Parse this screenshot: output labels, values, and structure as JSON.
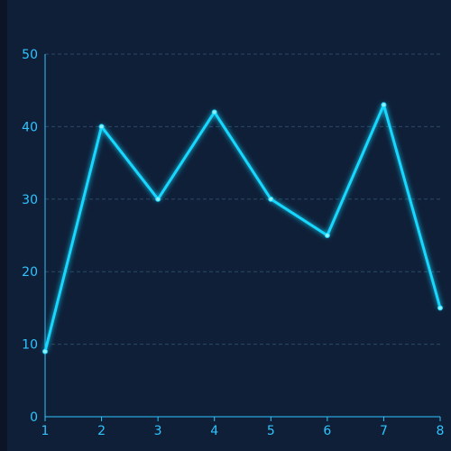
{
  "colors": {
    "background": "#0f1f38",
    "line": "#19d8ff",
    "axis": "#2fc4ff",
    "grid": "#2a4a66"
  },
  "chart_data": {
    "type": "line",
    "title": "",
    "xlabel": "",
    "ylabel": "",
    "x": [
      1,
      2,
      3,
      4,
      5,
      6,
      7,
      8
    ],
    "series": [
      {
        "values": [
          9,
          40,
          30,
          42,
          30,
          25,
          43,
          15
        ]
      }
    ],
    "xticks": [
      "1",
      "2",
      "3",
      "4",
      "5",
      "6",
      "7",
      "8"
    ],
    "yticks": [
      "0",
      "10",
      "20",
      "30",
      "40",
      "50"
    ],
    "ylim": [
      0,
      50
    ],
    "xlim": [
      1,
      8
    ],
    "grid": "horizontal dashed",
    "legend": "none"
  }
}
